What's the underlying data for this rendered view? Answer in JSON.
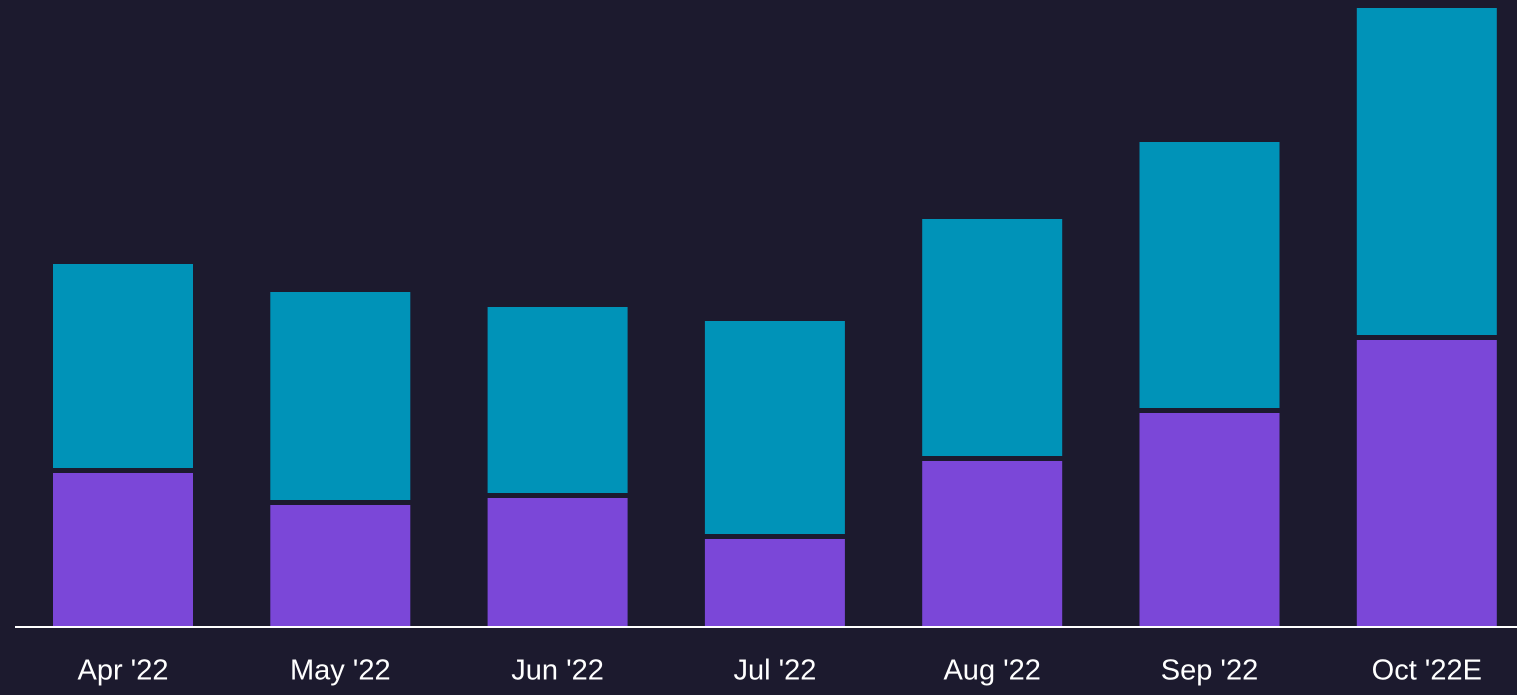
{
  "chart_data": {
    "type": "stacked_bar",
    "categories": [
      "Apr '22",
      "May '22",
      "Jun '22",
      "Jul '22",
      "Aug '22",
      "Sep '22",
      "Oct '22E"
    ],
    "series": [
      {
        "color": "#7b47d8",
        "values": [
          154,
          122,
          129,
          88,
          166,
          214,
          287
        ]
      },
      {
        "color": "#0093b8",
        "values": [
          209,
          213,
          191,
          218,
          242,
          271,
          332
        ]
      }
    ],
    "ylim": [
      0,
      619
    ]
  }
}
